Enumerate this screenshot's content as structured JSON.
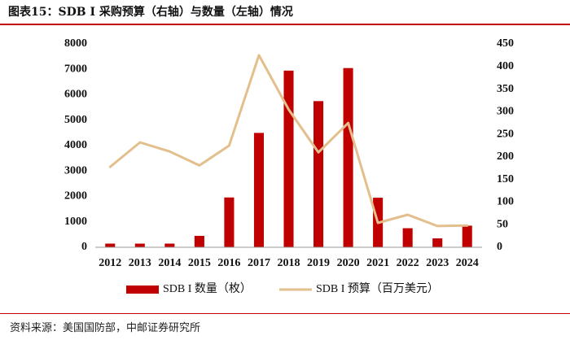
{
  "header": {
    "title": "图表15：SDB I 采购预算（右轴）与数量（左轴）情况"
  },
  "footer": {
    "source": "资料来源：美国国防部，中邮证券研究所"
  },
  "colors": {
    "bar": "#c00000",
    "line": "#e2bf8c",
    "accent_rule": "#c00000"
  },
  "chart_data": {
    "type": "bar",
    "categories": [
      "2012",
      "2013",
      "2014",
      "2015",
      "2016",
      "2017",
      "2018",
      "2019",
      "2020",
      "2021",
      "2022",
      "2023",
      "2024"
    ],
    "series": [
      {
        "name": "SDB I 数量（枚）",
        "type": "bar",
        "axis": "left",
        "values": [
          144,
          144,
          144,
          450,
          1960,
          4500,
          6950,
          5750,
          7050,
          1950,
          750,
          350,
          850
        ]
      },
      {
        "name": "SDB I 预算（百万美元）",
        "type": "line",
        "axis": "right",
        "values": [
          178,
          232,
          212,
          181,
          225,
          425,
          305,
          210,
          275,
          54,
          72,
          47,
          48
        ]
      }
    ],
    "y_left": {
      "lim": [
        0,
        8000
      ],
      "ticks": [
        "0",
        "1000",
        "2000",
        "3000",
        "4000",
        "5000",
        "6000",
        "7000",
        "8000"
      ]
    },
    "y_right": {
      "lim": [
        0,
        450
      ],
      "ticks": [
        "0",
        "50",
        "100",
        "150",
        "200",
        "250",
        "300",
        "350",
        "400",
        "450"
      ]
    },
    "grid": false,
    "legend_position": "bottom"
  }
}
